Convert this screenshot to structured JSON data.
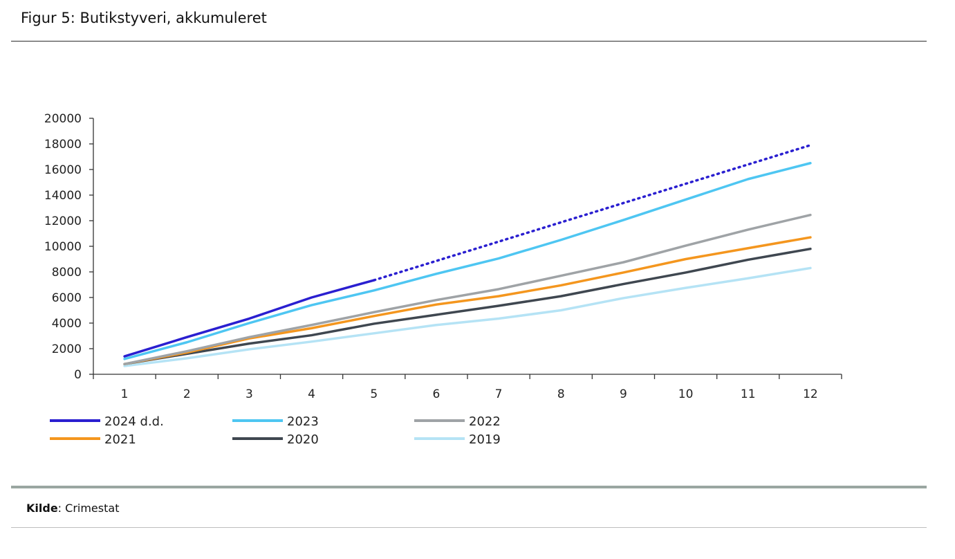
{
  "title": "Figur 5: Butikstyveri, akkumuleret",
  "source": {
    "label": "Kilde",
    "text": ": Crimestat"
  },
  "chart_data": {
    "type": "line",
    "x": [
      1,
      2,
      3,
      4,
      5,
      6,
      7,
      8,
      9,
      10,
      11,
      12
    ],
    "ylim": [
      0,
      20000
    ],
    "yticks": [
      0,
      2000,
      4000,
      6000,
      8000,
      10000,
      12000,
      14000,
      16000,
      18000,
      20000
    ],
    "grid": false,
    "legend_position": "bottom",
    "series": [
      {
        "name": "2024 d.d.",
        "color": "#2a1fd0",
        "values": [
          1400,
          2900,
          4350,
          6000,
          7350,
          null,
          null,
          null,
          null,
          null,
          null,
          null
        ],
        "projection": {
          "x": [
            5,
            12
          ],
          "values": [
            7350,
            17900
          ]
        }
      },
      {
        "name": "2023",
        "color": "#4ec6f2",
        "values": [
          1200,
          2500,
          4000,
          5400,
          6550,
          7850,
          9050,
          10500,
          12050,
          13650,
          15250,
          16500
        ]
      },
      {
        "name": "2022",
        "color": "#9fa3a6",
        "values": [
          800,
          1800,
          2900,
          3850,
          4850,
          5800,
          6650,
          7700,
          8750,
          10050,
          11300,
          12450
        ]
      },
      {
        "name": "2021",
        "color": "#f4961e",
        "values": [
          800,
          1700,
          2800,
          3600,
          4550,
          5450,
          6100,
          6950,
          7950,
          9000,
          9850,
          10700
        ]
      },
      {
        "name": "2020",
        "color": "#3f4750",
        "values": [
          800,
          1600,
          2400,
          3050,
          3950,
          4650,
          5350,
          6100,
          7050,
          7950,
          8950,
          9800
        ]
      },
      {
        "name": "2019",
        "color": "#b5e3f5",
        "values": [
          650,
          1250,
          1950,
          2550,
          3200,
          3850,
          4350,
          5000,
          5950,
          6750,
          7500,
          8300
        ]
      }
    ]
  }
}
